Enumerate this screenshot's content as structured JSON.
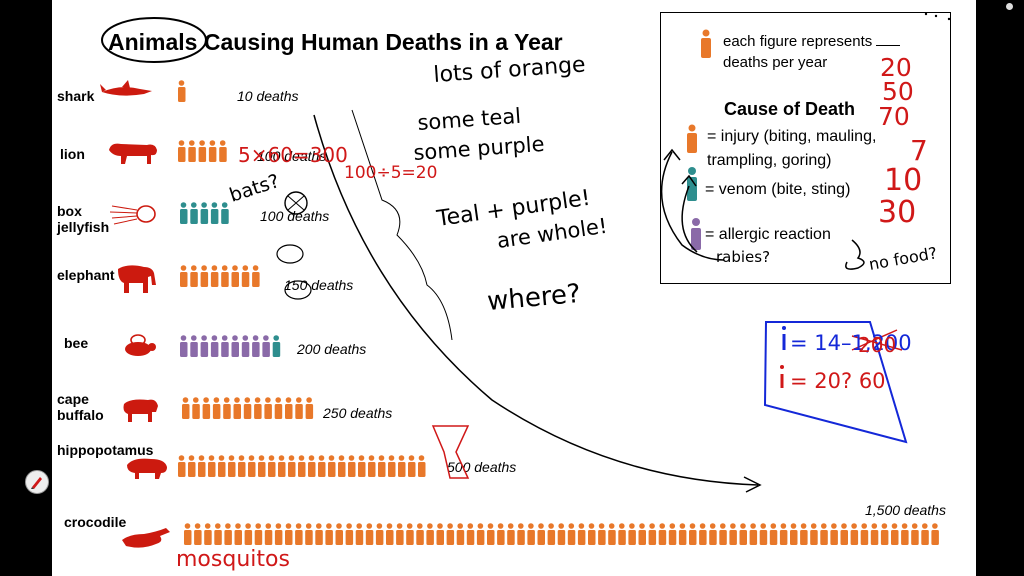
{
  "chart_data": {
    "type": "pictograph",
    "title": "Animals Causing Human Deaths in a Year",
    "rows": [
      {
        "animal": "shark",
        "deaths": 10,
        "label": "10 deaths",
        "figures": 1,
        "cause": "injury",
        "teal": 0,
        "purple": 0
      },
      {
        "animal": "lion",
        "deaths": 100,
        "label": "100 deaths",
        "figures": 5,
        "cause": "injury",
        "teal": 0,
        "purple": 0
      },
      {
        "animal": "box jellyfish",
        "deaths": 100,
        "label": "100 deaths",
        "figures": 5,
        "cause": "venom",
        "teal": 5,
        "purple": 0
      },
      {
        "animal": "elephant",
        "deaths": 150,
        "label": "150 deaths",
        "figures": 8,
        "cause": "injury",
        "teal": 0,
        "purple": 0
      },
      {
        "animal": "bee",
        "deaths": 200,
        "label": "200 deaths",
        "figures": 10,
        "cause": "allergic reaction",
        "teal": 1,
        "purple": 9
      },
      {
        "animal": "cape buffalo",
        "deaths": 250,
        "label": "250 deaths",
        "figures": 13,
        "cause": "injury",
        "teal": 0,
        "purple": 0
      },
      {
        "animal": "hippopotamus",
        "deaths": 500,
        "label": "500 deaths",
        "figures": 25,
        "cause": "injury",
        "teal": 0,
        "purple": 0
      },
      {
        "animal": "crocodile",
        "deaths": 1500,
        "label": "1,500 deaths",
        "figures": 75,
        "cause": "injury",
        "teal": 0,
        "purple": 0
      }
    ],
    "colors": {
      "injury": "#e8782a",
      "venom": "#2e8e8e",
      "allergic": "#8a6aa8",
      "animal_icon": "#cc1a0f"
    }
  },
  "labels": {
    "shark": "shark",
    "lion": "lion",
    "box_jellyfish": "box\njellyfish",
    "elephant": "elephant",
    "bee": "bee",
    "cape_buffalo": "cape\nbuffalo",
    "hippopotamus": "hippopotamus",
    "crocodile": "crocodile"
  },
  "legend": {
    "figure_line1": "each figure represents",
    "figure_line2": "deaths per year",
    "title": "Cause of Death",
    "injury_1": "= injury (biting, mauling,",
    "injury_2": "trampling, goring)",
    "venom": "= venom (bite, sting)",
    "allergic": "= allergic reaction"
  },
  "annotations": {
    "lots_of_orange": "lots of orange",
    "some_teal": "some teal",
    "some_purple": "some purple",
    "calc_lion": "5×60=300",
    "calc_div": "100÷5=20",
    "bats": "bats?",
    "teal_purple_1": "Teal + purple!",
    "teal_purple_2": "are whole!",
    "where": "where?",
    "rabies": "rabies?",
    "no_food": "no food?",
    "mosquitos": "mosquitos",
    "nums": [
      "20",
      "50",
      "70",
      "7",
      "10",
      "30"
    ],
    "blue_1": "= 14–1,200",
    "blue_2": "= 20? 60",
    "blue_struck": "200"
  },
  "ui": {
    "pen_icon": "pen-icon",
    "close_icon": "close-icon"
  }
}
